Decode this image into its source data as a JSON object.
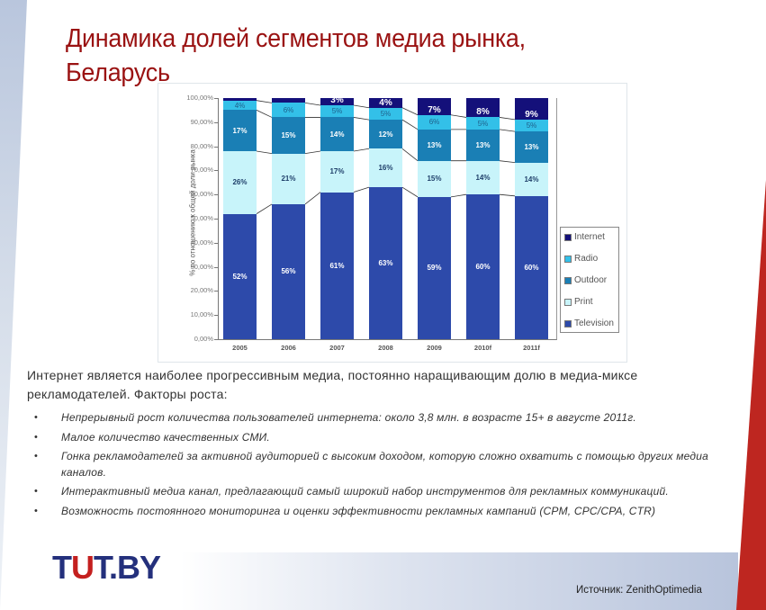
{
  "slide": {
    "title": "Динамика долей сегментов медиа рынка, Беларусь",
    "title_line1": "Динамика долей сегментов медиа рынка,",
    "title_line2": "Беларусь",
    "intro": "Интернет является наиболее прогрессивным медиа, постоянно наращивающим долю в медиа-миксе рекламодателей. Факторы роста:",
    "bullets": [
      "Непрерывный рост количества пользователей интернета: около 3,8 млн. в возрасте 15+ в августе 2011г.",
      "Малое количество качественных СМИ.",
      "Гонка рекламодателей за активной аудиторией с высоким доходом, которую сложно охватить с помощью других медиа каналов.",
      "Интерактивный медиа канал, предлагающий самый широкий набор инструментов для рекламных коммуникаций.",
      "Возможность постоянного мониторинга и оценки эффективности рекламных кампаний (CPM, CPC/CPA, CTR)"
    ],
    "bullet_glyph": "•",
    "logo": {
      "part1": "T",
      "part2": "U",
      "part3": "T.BY"
    },
    "source": "Источник:  ZenithOptimedia"
  },
  "colors": {
    "title": "#9a1212",
    "internet": "#14107a",
    "radio": "#33c0e8",
    "outdoor": "#1a7fb5",
    "print": "#c8f4fa",
    "television": "#2d4aaa",
    "accent_red": "#be2620",
    "logo_blue": "#24307c"
  },
  "chart_data": {
    "type": "bar",
    "stacked": true,
    "percent_stacked": true,
    "title": "",
    "xlabel": "",
    "ylabel": "% по отношению к общей доли рынка",
    "ylim": [
      0,
      100
    ],
    "yticks": [
      "0,00%",
      "10,00%",
      "20,00%",
      "30,00%",
      "40,00%",
      "50,00%",
      "60,00%",
      "70,00%",
      "80,00%",
      "90,00%",
      "100,00%"
    ],
    "categories": [
      "2005",
      "2006",
      "2007",
      "2008",
      "2009",
      "2010f",
      "2011f"
    ],
    "series": [
      {
        "name": "Television",
        "color": "#2d4aaa",
        "values": [
          52,
          56,
          61,
          63,
          59,
          60,
          60
        ],
        "labels": [
          "52%",
          "56%",
          "61%",
          "63%",
          "59%",
          "60%",
          "60%"
        ]
      },
      {
        "name": "Print",
        "color": "#c8f4fa",
        "values": [
          26,
          21,
          17,
          16,
          15,
          14,
          14
        ],
        "labels": [
          "26%",
          "21%",
          "17%",
          "16%",
          "15%",
          "14%",
          "14%"
        ]
      },
      {
        "name": "Outdoor",
        "color": "#1a7fb5",
        "values": [
          17,
          15,
          14,
          12,
          13,
          13,
          13
        ],
        "labels": [
          "17%",
          "15%",
          "14%",
          "12%",
          "13%",
          "13%",
          "13%"
        ]
      },
      {
        "name": "Radio",
        "color": "#33c0e8",
        "values": [
          4,
          6,
          5,
          5,
          6,
          5,
          5
        ],
        "labels": [
          "4%",
          "6%",
          "5%",
          "5%",
          "6%",
          "5%",
          "5%"
        ]
      },
      {
        "name": "Internet",
        "color": "#14107a",
        "values": [
          1,
          2,
          3,
          4,
          7,
          8,
          9
        ],
        "labels": [
          "",
          "",
          "3%",
          "4%",
          "7%",
          "8%",
          "9%"
        ]
      }
    ],
    "legend": [
      "Internet",
      "Radio",
      "Outdoor",
      "Print",
      "Television"
    ],
    "legend_position": "right",
    "grid": false,
    "series_connector_lines": true
  }
}
